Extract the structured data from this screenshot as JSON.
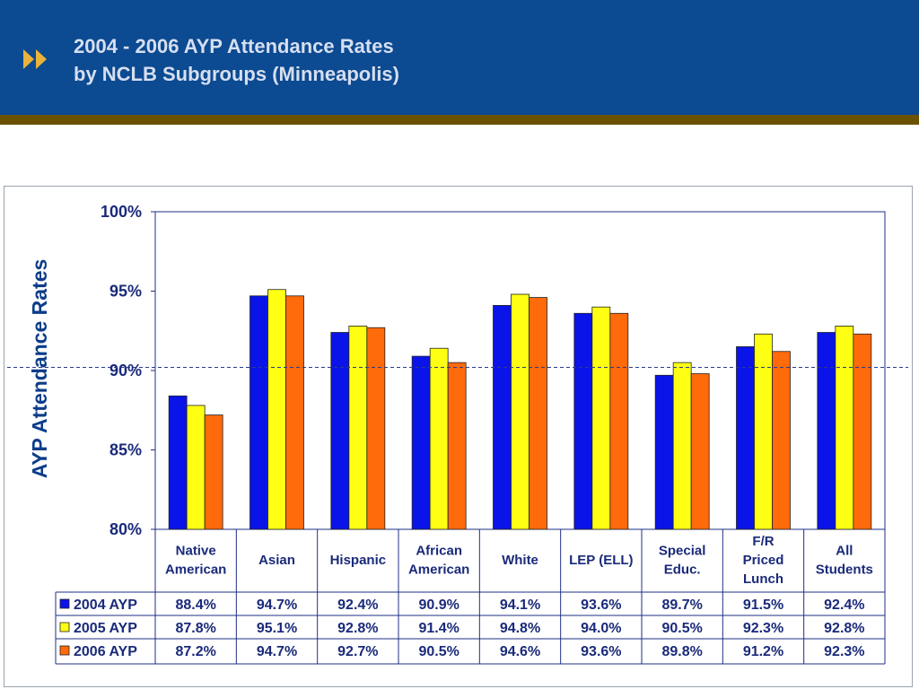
{
  "header": {
    "title_line1": "2004 - 2006 AYP Attendance Rates",
    "title_line2": "by NCLB Subgroups (Minneapolis)",
    "bullet_icon": "double-chevron-right-icon",
    "colors": {
      "band": "#0c4a91",
      "stripe": "#6b5200",
      "title": "#d6dff0",
      "bullet": "#e8b33a"
    }
  },
  "chart_data": {
    "type": "bar",
    "title": "",
    "ylabel": "AYP Attendance Rates",
    "xlabel": "",
    "ylim": [
      80,
      100
    ],
    "yticks": [
      80,
      85,
      90,
      95,
      100
    ],
    "ytick_labels": [
      "80%",
      "85%",
      "90%",
      "95%",
      "100%"
    ],
    "reference_line": 90.2,
    "categories": [
      [
        "Native",
        "American"
      ],
      [
        "Asian"
      ],
      [
        "Hispanic"
      ],
      [
        "African",
        "American"
      ],
      [
        "White"
      ],
      [
        "LEP (ELL)"
      ],
      [
        "Special",
        "Educ."
      ],
      [
        "F/R",
        "Priced",
        "Lunch"
      ],
      [
        "All",
        "Students"
      ]
    ],
    "series": [
      {
        "name": "2004 AYP",
        "color": "#0a14e8",
        "values": [
          88.4,
          94.7,
          92.4,
          90.9,
          94.1,
          93.6,
          89.7,
          91.5,
          92.4
        ],
        "labels": [
          "88.4%",
          "94.7%",
          "92.4%",
          "90.9%",
          "94.1%",
          "93.6%",
          "89.7%",
          "91.5%",
          "92.4%"
        ]
      },
      {
        "name": "2005 AYP",
        "color": "#ffff14",
        "values": [
          87.8,
          95.1,
          92.8,
          91.4,
          94.8,
          94.0,
          90.5,
          92.3,
          92.8
        ],
        "labels": [
          "87.8%",
          "95.1%",
          "92.8%",
          "91.4%",
          "94.8%",
          "94.0%",
          "90.5%",
          "92.3%",
          "92.8%"
        ]
      },
      {
        "name": "2006 AYP",
        "color": "#ff6a0a",
        "values": [
          87.2,
          94.7,
          92.7,
          90.5,
          94.6,
          93.6,
          89.8,
          91.2,
          92.3
        ],
        "labels": [
          "87.2%",
          "94.7%",
          "92.7%",
          "90.5%",
          "94.6%",
          "93.6%",
          "89.8%",
          "91.2%",
          "92.3%"
        ]
      }
    ],
    "grid": false,
    "legend": "data-table-rows"
  }
}
